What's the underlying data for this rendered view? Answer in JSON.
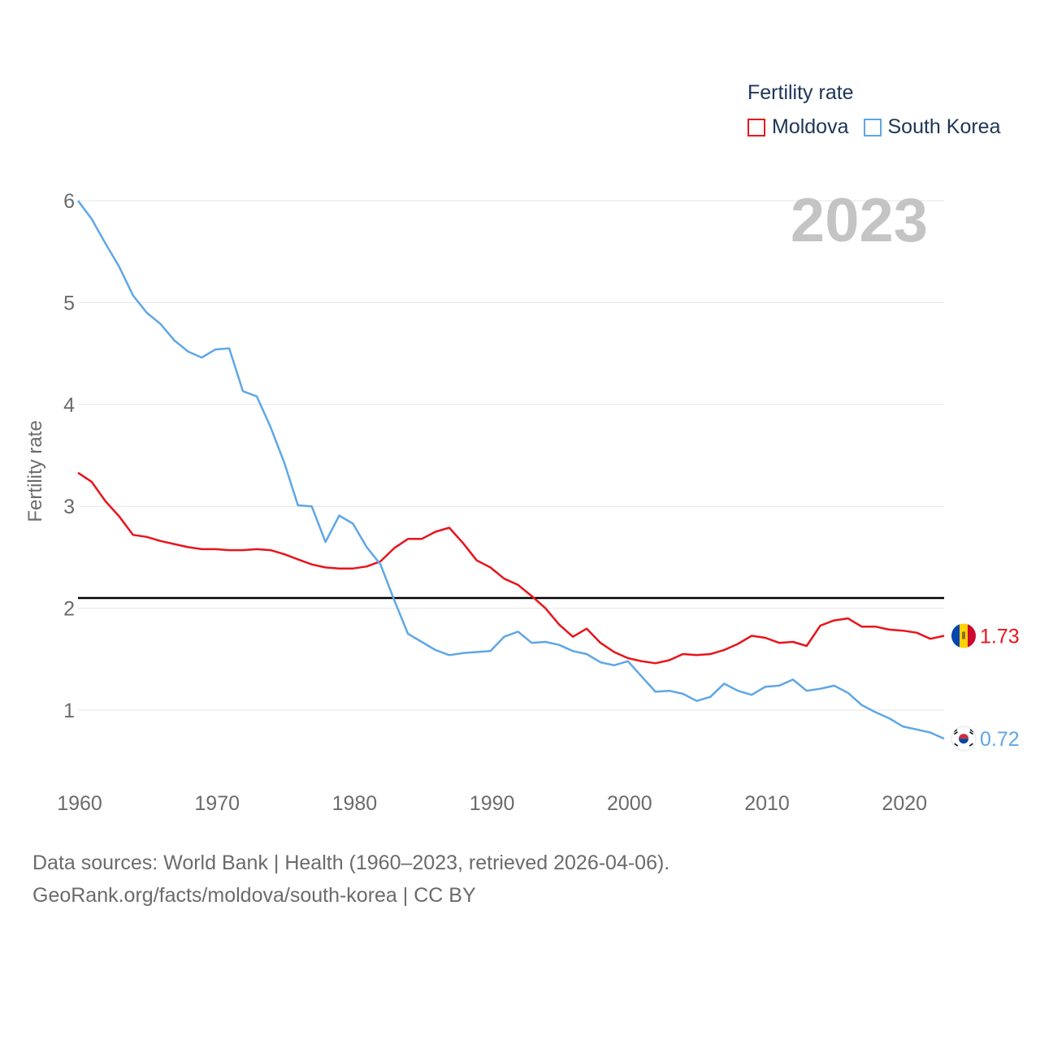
{
  "legend": {
    "title": "Fertility rate",
    "items": [
      {
        "label": "Moldova",
        "color": "#e8141c"
      },
      {
        "label": "South Korea",
        "color": "#5ea7e6"
      }
    ]
  },
  "year_label": "2023",
  "footer": {
    "line1": "Data sources: World Bank | Health (1960–2023, retrieved 2026-04-06).",
    "line2": "GeoRank.org/facts/moldova/south-korea | CC BY"
  },
  "chart_data": {
    "type": "line",
    "title": "",
    "xlabel": "",
    "ylabel": "Fertility rate",
    "xlim": [
      1960,
      2023
    ],
    "ylim": [
      0.5,
      6
    ],
    "x_ticks": [
      1960,
      1970,
      1980,
      1990,
      2000,
      2010,
      2020
    ],
    "y_ticks": [
      1,
      2,
      3,
      4,
      5,
      6
    ],
    "grid": true,
    "legend_position": "top-right",
    "reference_line": {
      "value": 2.1,
      "color": "#000000"
    },
    "x": [
      1960,
      1961,
      1962,
      1963,
      1964,
      1965,
      1966,
      1967,
      1968,
      1969,
      1970,
      1971,
      1972,
      1973,
      1974,
      1975,
      1976,
      1977,
      1978,
      1979,
      1980,
      1981,
      1982,
      1983,
      1984,
      1985,
      1986,
      1987,
      1988,
      1989,
      1990,
      1991,
      1992,
      1993,
      1994,
      1995,
      1996,
      1997,
      1998,
      1999,
      2000,
      2001,
      2002,
      2003,
      2004,
      2005,
      2006,
      2007,
      2008,
      2009,
      2010,
      2011,
      2012,
      2013,
      2014,
      2015,
      2016,
      2017,
      2018,
      2019,
      2020,
      2021,
      2022,
      2023
    ],
    "series": [
      {
        "name": "Moldova",
        "color": "#e8141c",
        "end_label": "1.73",
        "values": [
          3.33,
          3.24,
          3.05,
          2.9,
          2.72,
          2.7,
          2.66,
          2.63,
          2.6,
          2.58,
          2.58,
          2.57,
          2.57,
          2.58,
          2.57,
          2.53,
          2.48,
          2.43,
          2.4,
          2.39,
          2.39,
          2.41,
          2.46,
          2.59,
          2.68,
          2.68,
          2.75,
          2.79,
          2.64,
          2.47,
          2.4,
          2.29,
          2.23,
          2.12,
          2.0,
          1.84,
          1.72,
          1.8,
          1.66,
          1.57,
          1.51,
          1.48,
          1.46,
          1.49,
          1.55,
          1.54,
          1.55,
          1.59,
          1.65,
          1.73,
          1.71,
          1.66,
          1.67,
          1.63,
          1.83,
          1.88,
          1.9,
          1.82,
          1.82,
          1.79,
          1.78,
          1.76,
          1.7,
          1.73
        ]
      },
      {
        "name": "South Korea",
        "color": "#5ea7e6",
        "end_label": "0.72",
        "values": [
          6.0,
          5.82,
          5.58,
          5.35,
          5.07,
          4.9,
          4.79,
          4.63,
          4.52,
          4.46,
          4.54,
          4.55,
          4.13,
          4.08,
          3.78,
          3.43,
          3.01,
          3.0,
          2.65,
          2.91,
          2.83,
          2.6,
          2.43,
          2.08,
          1.75,
          1.67,
          1.59,
          1.54,
          1.56,
          1.57,
          1.58,
          1.72,
          1.77,
          1.66,
          1.67,
          1.64,
          1.58,
          1.55,
          1.47,
          1.44,
          1.48,
          1.33,
          1.18,
          1.19,
          1.16,
          1.09,
          1.13,
          1.26,
          1.19,
          1.15,
          1.23,
          1.24,
          1.3,
          1.19,
          1.21,
          1.24,
          1.17,
          1.05,
          0.98,
          0.92,
          0.84,
          0.81,
          0.78,
          0.72
        ]
      }
    ]
  }
}
